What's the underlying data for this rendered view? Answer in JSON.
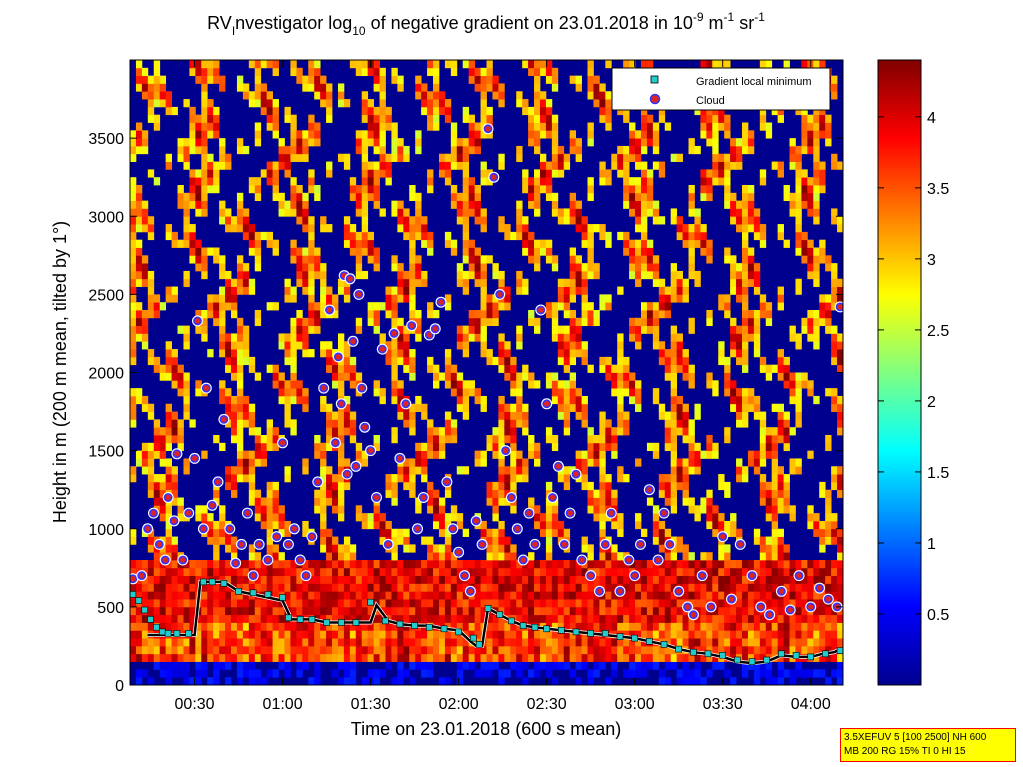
{
  "chart_data": {
    "type": "heatmap",
    "title_parts": {
      "prefix": "RV",
      "prefix_sub": "I",
      "main": "nvestigator log",
      "log_sub": "10",
      "middle": " of negative gradient on 23.01.2018 in 10",
      "exp1": "-9",
      "unit1": " m",
      "exp2": "-1",
      "unit2": " sr",
      "exp3": "-1"
    },
    "xlabel": "Time on 23.01.2018 (600 s mean)",
    "ylabel": "Height in m (200 m mean, tilted by 1°)",
    "x_tick_labels": [
      "00:30",
      "01:00",
      "01:30",
      "02:00",
      "02:30",
      "03:00",
      "03:30",
      "04:00"
    ],
    "x_tick_values": [
      30,
      60,
      90,
      120,
      150,
      180,
      210,
      240
    ],
    "xlim": [
      8,
      251
    ],
    "y_tick_labels": [
      "0",
      "500",
      "1000",
      "1500",
      "2000",
      "2500",
      "3000",
      "3500"
    ],
    "y_tick_values": [
      0,
      500,
      1000,
      1500,
      2000,
      2500,
      3000,
      3500
    ],
    "ylim": [
      0,
      4000
    ],
    "colorbar": {
      "tick_labels": [
        "0.5",
        "1",
        "1.5",
        "2",
        "2.5",
        "3",
        "3.5",
        "4"
      ],
      "tick_values": [
        0.5,
        1,
        1.5,
        2,
        2.5,
        3,
        3.5,
        4
      ],
      "range": [
        0,
        4.4
      ],
      "colormap": "jet"
    },
    "legend": {
      "placement": "top-right",
      "entries": [
        {
          "label": "Gradient local minimum",
          "marker": "square",
          "color": "#22cccc"
        },
        {
          "label": "Cloud",
          "marker": "circle",
          "color": "#dd2222",
          "edge": "#3333ff"
        }
      ]
    },
    "series": [
      {
        "name": "Gradient local minimum",
        "x": [
          9,
          11,
          13,
          15,
          17,
          19,
          21,
          24,
          28,
          33,
          36,
          40,
          45,
          50,
          55,
          60,
          62,
          66,
          70,
          75,
          80,
          85,
          90,
          95,
          100,
          105,
          110,
          115,
          120,
          125,
          127,
          130,
          134,
          138,
          142,
          146,
          150,
          155,
          160,
          165,
          170,
          175,
          180,
          185,
          190,
          195,
          200,
          205,
          210,
          215,
          220,
          225,
          230,
          235,
          240,
          245,
          250
        ],
        "y": [
          580,
          540,
          480,
          420,
          370,
          340,
          330,
          330,
          330,
          660,
          660,
          650,
          600,
          590,
          580,
          560,
          430,
          420,
          420,
          400,
          400,
          400,
          530,
          410,
          390,
          380,
          370,
          360,
          340,
          300,
          260,
          490,
          450,
          410,
          380,
          370,
          360,
          350,
          340,
          330,
          330,
          310,
          300,
          280,
          260,
          230,
          210,
          200,
          190,
          160,
          150,
          160,
          200,
          190,
          180,
          200,
          220
        ]
      },
      {
        "name": "Cloud",
        "x": [
          9,
          12,
          14,
          16,
          18,
          20,
          21,
          23,
          24,
          26,
          28,
          30,
          31,
          33,
          34,
          36,
          38,
          40,
          42,
          44,
          46,
          48,
          50,
          52,
          55,
          58,
          60,
          62,
          64,
          66,
          68,
          70,
          72,
          74,
          76,
          78,
          79,
          80,
          81,
          82,
          83,
          84,
          85,
          86,
          87,
          88,
          90,
          92,
          94,
          96,
          98,
          100,
          102,
          104,
          106,
          108,
          110,
          112,
          114,
          116,
          118,
          120,
          122,
          124,
          126,
          128,
          130,
          132,
          134,
          136,
          138,
          140,
          142,
          144,
          146,
          148,
          150,
          152,
          154,
          156,
          158,
          160,
          162,
          165,
          168,
          170,
          172,
          175,
          178,
          180,
          182,
          185,
          188,
          190,
          192,
          195,
          198,
          200,
          203,
          206,
          210,
          213,
          216,
          220,
          223,
          226,
          230,
          233,
          236,
          240,
          243,
          246,
          249,
          250
        ],
        "y": [
          680,
          700,
          1000,
          1100,
          900,
          800,
          1200,
          1050,
          1480,
          800,
          1100,
          1450,
          2330,
          1000,
          1900,
          1150,
          1300,
          1700,
          1000,
          780,
          900,
          1100,
          700,
          900,
          800,
          950,
          1550,
          900,
          1000,
          800,
          700,
          950,
          1300,
          1900,
          2400,
          1550,
          2100,
          1800,
          2620,
          1350,
          2600,
          2200,
          1400,
          2500,
          1900,
          1650,
          1500,
          1200,
          2150,
          900,
          2250,
          1450,
          1800,
          2300,
          1000,
          1200,
          2240,
          2280,
          2450,
          1300,
          1000,
          850,
          700,
          600,
          1050,
          900,
          3560,
          3250,
          2500,
          1500,
          1200,
          1000,
          800,
          1100,
          900,
          2400,
          1800,
          1200,
          1400,
          900,
          1100,
          1350,
          800,
          700,
          600,
          900,
          1100,
          600,
          800,
          700,
          900,
          1250,
          800,
          1100,
          900,
          600,
          500,
          450,
          700,
          500,
          950,
          550,
          900,
          700,
          500,
          450,
          600,
          480,
          700,
          500,
          620,
          550,
          500,
          2420
        ]
      },
      {
        "name": "Cloud base line",
        "x": [
          14,
          18,
          22,
          26,
          30,
          32,
          36,
          40,
          45,
          50,
          55,
          60,
          63,
          66,
          70,
          75,
          80,
          85,
          90,
          92,
          96,
          100,
          105,
          110,
          115,
          120,
          124,
          126,
          128,
          130,
          134,
          138,
          142,
          146,
          150,
          155,
          160,
          165,
          170,
          175,
          180,
          185,
          190,
          195,
          200,
          205,
          210,
          215,
          220,
          225,
          230,
          235,
          240,
          244,
          248,
          250
        ],
        "y": [
          320,
          320,
          320,
          320,
          320,
          660,
          660,
          660,
          600,
          580,
          560,
          540,
          420,
          420,
          420,
          400,
          400,
          400,
          400,
          510,
          410,
          390,
          380,
          380,
          360,
          350,
          280,
          250,
          250,
          490,
          450,
          410,
          380,
          370,
          360,
          350,
          340,
          330,
          320,
          310,
          300,
          280,
          260,
          230,
          210,
          200,
          180,
          150,
          140,
          150,
          190,
          180,
          180,
          200,
          210,
          230
        ]
      }
    ]
  },
  "info_box": {
    "line1": "3.5XEFUV 5 [100 2500] NH 600",
    "line2": "MB 200 RG 15% TI 0 HI 15"
  }
}
